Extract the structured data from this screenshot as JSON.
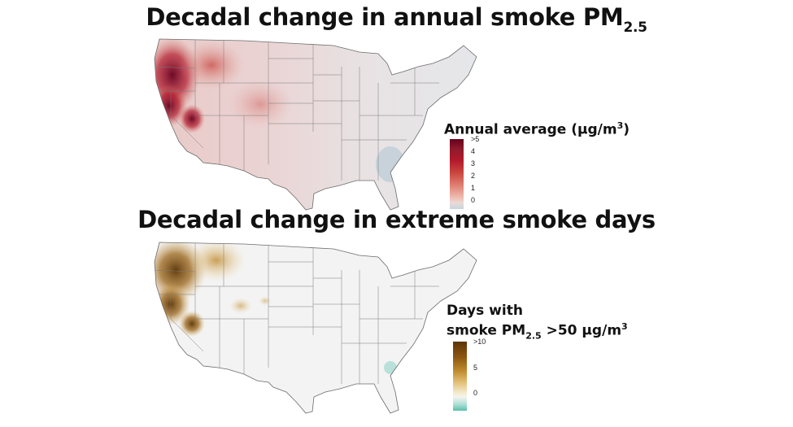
{
  "titles": {
    "top_main": "Decadal change in annual smoke PM",
    "top_sub": "2.5",
    "bottom": "Decadal change in extreme smoke days"
  },
  "legend_top": {
    "title_main": "Annual average (μg/m",
    "title_sup": "3",
    "title_end": ")",
    "ticks": [
      ">5",
      "4",
      "3",
      "2",
      "1",
      "0"
    ],
    "colors": {
      "high": "#67001f",
      "mid": "#c9463f",
      "zero": "#ecd9d6",
      "low": "#c7d6df"
    }
  },
  "legend_bottom": {
    "line1": "Days with",
    "line2_main": "smoke PM",
    "line2_sub": "2.5",
    "line2_end": " >50 μg/m",
    "line2_sup": "3",
    "ticks": [
      ">10",
      "5",
      "0"
    ],
    "colors": {
      "high": "#5c3404",
      "mid": "#e0bd72",
      "zero": "#f5f3ee",
      "low": "#5bbfac"
    }
  },
  "map_colors": {
    "top_base": "#ead3d3",
    "top_east": "#e8e6e7",
    "top_hot": "#8e1a2b",
    "top_florida_low": "#b9cad6",
    "bottom_base": "#f3f3f3",
    "bottom_hot": "#8c5510",
    "bottom_mid": "#c9993e",
    "bottom_teal": "#7dd0bf"
  }
}
